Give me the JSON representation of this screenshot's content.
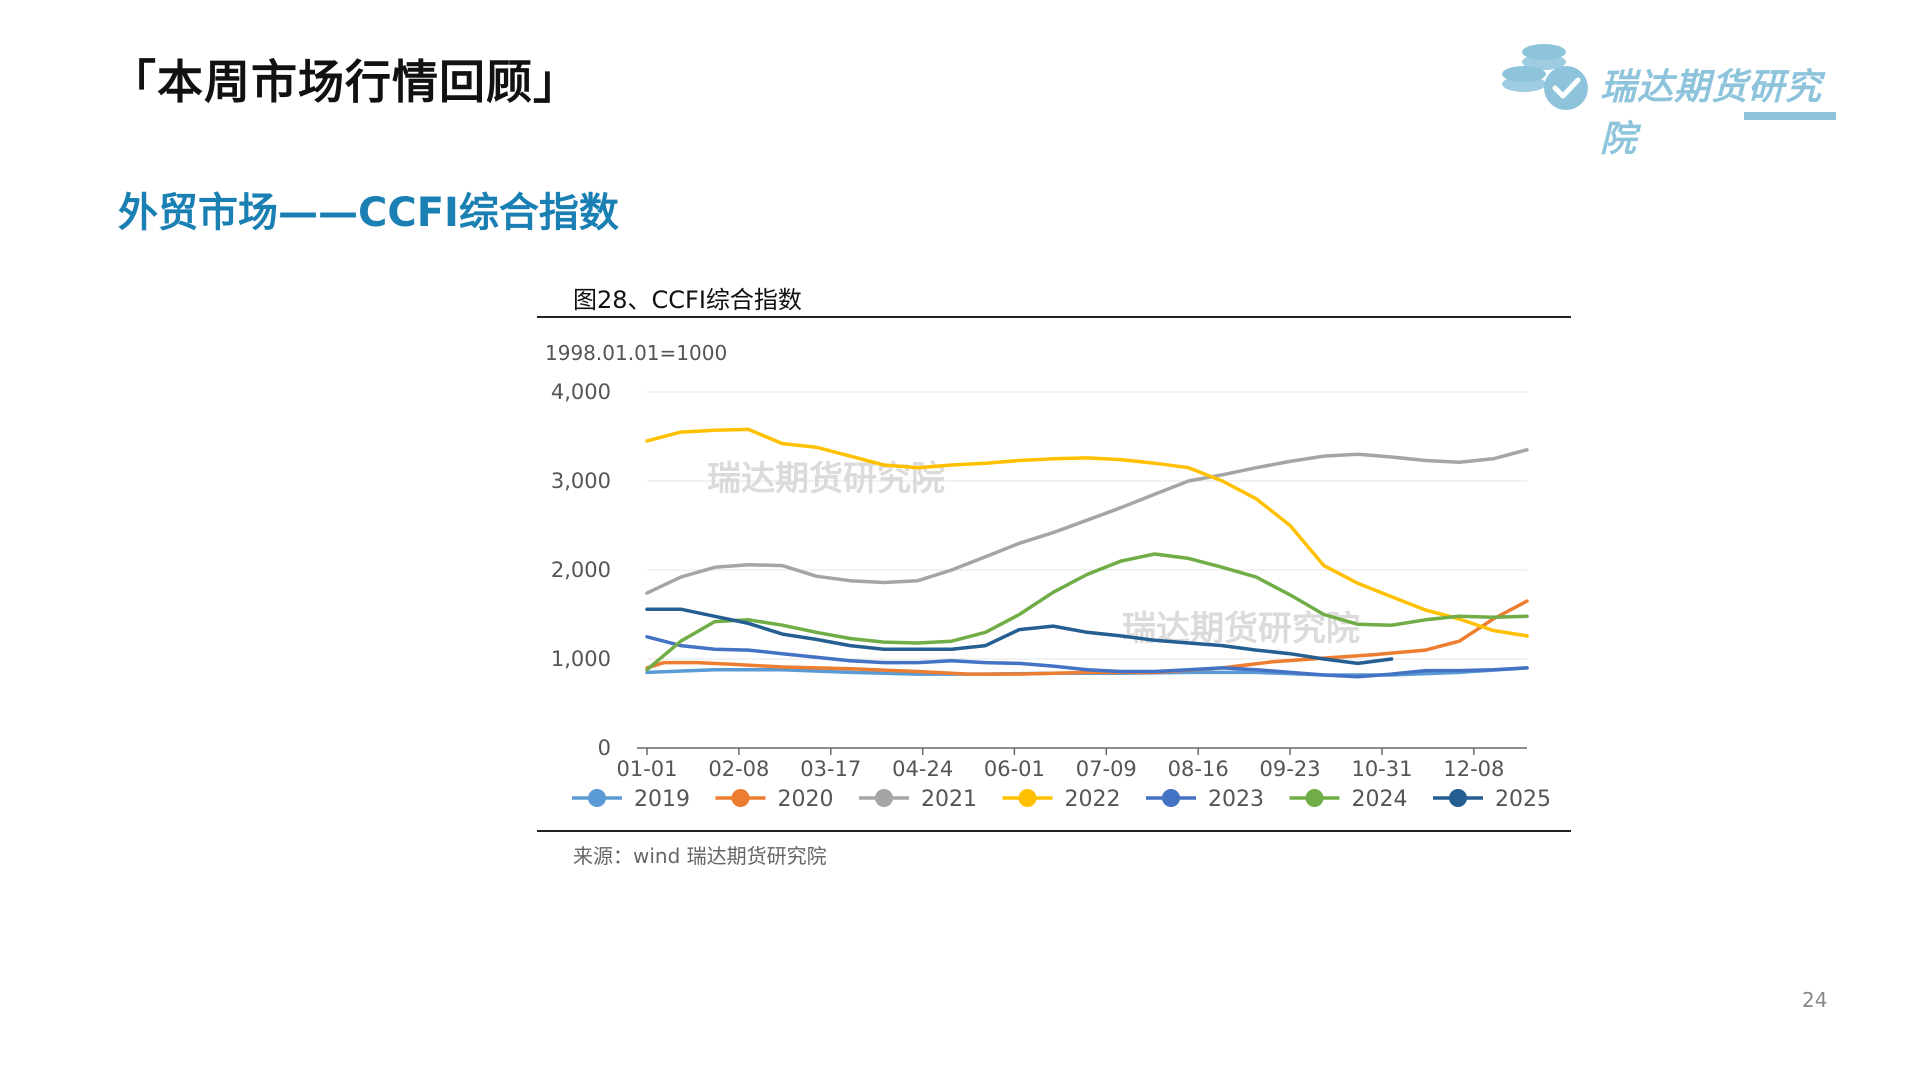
{
  "slide_title": "「本周市场行情回顾」",
  "section_title": "外贸市场——CCFI综合指数",
  "logo": {
    "text": "瑞达期货研究院",
    "icon": "coins-check-icon",
    "color": "#8dc4dc"
  },
  "figure_title": "图28、CCFI综合指数",
  "source": "来源：wind   瑞达期货研究院",
  "page_number": "24",
  "chart_data": {
    "type": "line",
    "base_label": "1998.01.01=1000",
    "watermark": "瑞达期货研究院",
    "ylim": [
      0,
      4000
    ],
    "y_ticks": [
      {
        "value": 0,
        "label": "0"
      },
      {
        "value": 1000,
        "label": "1,000"
      },
      {
        "value": 2000,
        "label": "2,000"
      },
      {
        "value": 3000,
        "label": "3,000"
      },
      {
        "value": 4000,
        "label": "4,000"
      }
    ],
    "x_tick_labels": [
      "01-01",
      "02-08",
      "03-17",
      "04-24",
      "06-01",
      "07-09",
      "08-16",
      "09-23",
      "10-31",
      "12-08"
    ],
    "x_tick_weeks": [
      0,
      5.43,
      10.86,
      16.29,
      21.71,
      27.14,
      32.57,
      38,
      43.43,
      48.86
    ],
    "grid": true,
    "legend_position": "bottom",
    "series": [
      {
        "name": "2019",
        "color": "#5b9bd5",
        "x": [
          0,
          4,
          8,
          12,
          16,
          20,
          24,
          28,
          32,
          36,
          40,
          44,
          48,
          52
        ],
        "y": [
          850,
          880,
          880,
          850,
          830,
          830,
          840,
          840,
          850,
          850,
          820,
          820,
          850,
          900
        ]
      },
      {
        "name": "2020",
        "color": "#ed7d31",
        "x": [
          0,
          1,
          3,
          5,
          8,
          12,
          16,
          19,
          22,
          26,
          30,
          34,
          37,
          40,
          43,
          46,
          48,
          50,
          52
        ],
        "y": [
          900,
          960,
          960,
          940,
          910,
          890,
          860,
          830,
          830,
          850,
          850,
          900,
          970,
          1010,
          1050,
          1100,
          1200,
          1450,
          1650
        ]
      },
      {
        "name": "2021",
        "color": "#a5a5a5",
        "x": [
          0,
          2,
          4,
          6,
          8,
          10,
          12,
          14,
          16,
          18,
          20,
          22,
          24,
          26,
          28,
          30,
          32,
          34,
          36,
          38,
          40,
          42,
          44,
          46,
          48,
          50,
          52
        ],
        "y": [
          1740,
          1920,
          2030,
          2060,
          2050,
          1930,
          1880,
          1860,
          1880,
          2000,
          2150,
          2300,
          2420,
          2560,
          2700,
          2850,
          3000,
          3070,
          3150,
          3220,
          3280,
          3300,
          3270,
          3230,
          3210,
          3250,
          3350
        ]
      },
      {
        "name": "2022",
        "color": "#ffc000",
        "x": [
          0,
          2,
          4,
          6,
          8,
          10,
          12,
          14,
          16,
          18,
          20,
          22,
          24,
          26,
          28,
          30,
          32,
          34,
          36,
          38,
          40,
          42,
          44,
          46,
          48,
          50,
          52
        ],
        "y": [
          3450,
          3550,
          3570,
          3580,
          3420,
          3380,
          3280,
          3180,
          3150,
          3180,
          3200,
          3230,
          3250,
          3260,
          3240,
          3200,
          3150,
          3000,
          2800,
          2500,
          2050,
          1850,
          1700,
          1550,
          1450,
          1320,
          1260
        ]
      },
      {
        "name": "2023",
        "color": "#4472c4",
        "x": [
          0,
          2,
          4,
          6,
          8,
          10,
          12,
          14,
          16,
          18,
          20,
          22,
          24,
          26,
          28,
          30,
          32,
          34,
          36,
          38,
          40,
          42,
          44,
          46,
          48,
          50,
          52
        ],
        "y": [
          1250,
          1150,
          1110,
          1100,
          1060,
          1020,
          980,
          960,
          960,
          980,
          960,
          950,
          920,
          880,
          860,
          860,
          880,
          900,
          880,
          850,
          820,
          800,
          830,
          870,
          870,
          880,
          900
        ]
      },
      {
        "name": "2024",
        "color": "#70ad47",
        "x": [
          0,
          2,
          4,
          6,
          8,
          10,
          12,
          14,
          16,
          18,
          20,
          22,
          24,
          26,
          28,
          30,
          32,
          34,
          36,
          38,
          40,
          42,
          44,
          46,
          48,
          50,
          52
        ],
        "y": [
          880,
          1200,
          1420,
          1440,
          1380,
          1300,
          1230,
          1190,
          1180,
          1200,
          1300,
          1500,
          1750,
          1950,
          2100,
          2180,
          2130,
          2030,
          1920,
          1720,
          1500,
          1390,
          1380,
          1440,
          1480,
          1470,
          1480
        ]
      },
      {
        "name": "2025",
        "color": "#255e91",
        "x": [
          0,
          2,
          4,
          6,
          8,
          10,
          12,
          14,
          16,
          18,
          20,
          22,
          24,
          26,
          28,
          30,
          32,
          34,
          36,
          38,
          40,
          42,
          44
        ],
        "y": [
          1560,
          1560,
          1480,
          1400,
          1280,
          1220,
          1150,
          1110,
          1110,
          1110,
          1150,
          1330,
          1370,
          1300,
          1260,
          1210,
          1180,
          1150,
          1100,
          1060,
          1000,
          950,
          1000
        ]
      }
    ]
  }
}
